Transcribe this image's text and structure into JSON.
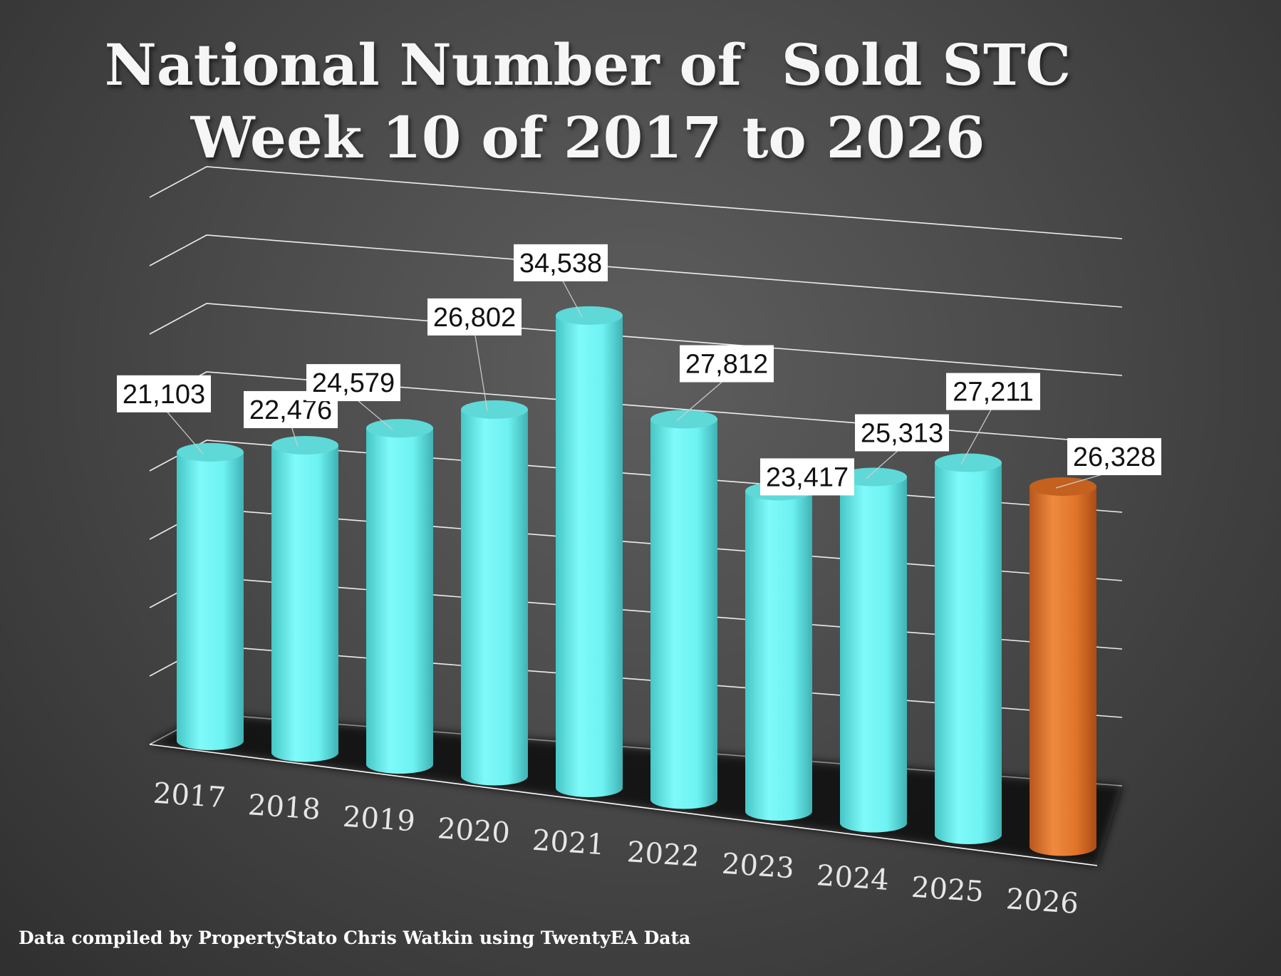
{
  "title_line1": "National Number of  Sold STC",
  "title_line2": "Week 10 of 2017 to 2026",
  "footer": "Data compiled by PropertyStato Chris Watkin using TwentyEA Data",
  "colors": {
    "bar": "#6ef2f2",
    "highlight": "#e67a2e",
    "label_bg": "#ffffff",
    "gridline": "#ffffff"
  },
  "chart_data": {
    "type": "bar",
    "style": "3d-cylinder",
    "categories": [
      "2017",
      "2018",
      "2019",
      "2020",
      "2021",
      "2022",
      "2023",
      "2024",
      "2025",
      "2026"
    ],
    "values": [
      21103,
      22476,
      24579,
      26802,
      34538,
      27812,
      23417,
      25313,
      27211,
      26328
    ],
    "data_labels": [
      "21,103",
      "22,476",
      "24,579",
      "26,802",
      "34,538",
      "27,812",
      "23,417",
      "25,313",
      "27,211",
      "26,328"
    ],
    "highlight_category": "2026",
    "ylim": [
      0,
      40000
    ],
    "ytick_step": 5000,
    "yaxis_labels_shown": false,
    "grid": true,
    "legend": "none",
    "xlabel": "",
    "ylabel": ""
  }
}
